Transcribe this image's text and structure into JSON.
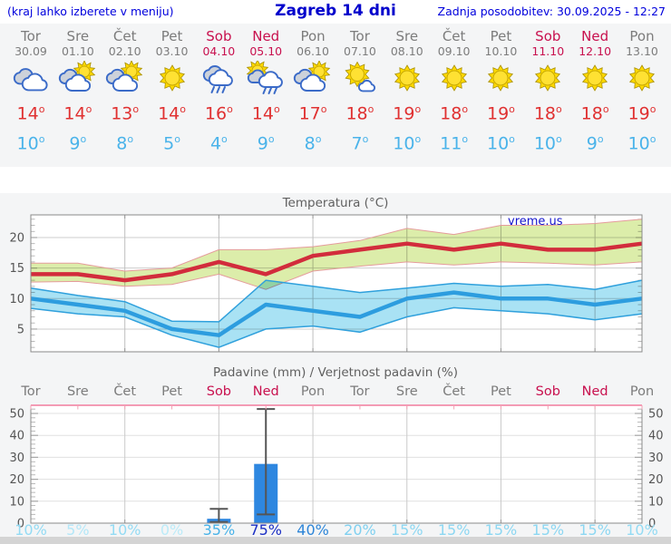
{
  "header": {
    "left_note": "(kraj lahko izberete v meniju)",
    "title": "Zagreb 14 dni",
    "updated": "Zadnja posodobitev: 30.09.2025 - 12:27"
  },
  "shared": {
    "deg": "o"
  },
  "colors": {
    "header_blue": "#0000dd",
    "day_gray": "#7c7c7c",
    "weekend_crimson": "#c8104e",
    "tmax_red": "#e03131",
    "tmin_blue": "#4ab3ea",
    "max_line": "#d22c3c",
    "max_band": "#dcedaa",
    "min_line": "#2d9ddf",
    "min_band": "#a9e2f4",
    "bar_blue": "#2e87e0",
    "panel_gray": "#f4f5f6"
  },
  "days": [
    {
      "name": "Tor",
      "date": "30.09",
      "weekend": false,
      "icon": "cloudy",
      "tmax": 14,
      "tmin": 10,
      "pop": "10%",
      "pop_color": "#93dbf4"
    },
    {
      "name": "Sre",
      "date": "01.10",
      "weekend": false,
      "icon": "partly-cloudy",
      "tmax": 14,
      "tmin": 9,
      "pop": "5%",
      "pop_color": "#b4e7f8"
    },
    {
      "name": "Čet",
      "date": "02.10",
      "weekend": false,
      "icon": "partly-cloudy",
      "tmax": 13,
      "tmin": 8,
      "pop": "10%",
      "pop_color": "#93dbf4"
    },
    {
      "name": "Pet",
      "date": "03.10",
      "weekend": false,
      "icon": "sunny",
      "tmax": 14,
      "tmin": 5,
      "pop": "0%",
      "pop_color": "#bcebf8"
    },
    {
      "name": "Sob",
      "date": "04.10",
      "weekend": true,
      "icon": "rain",
      "tmax": 16,
      "tmin": 4,
      "pop": "35%",
      "pop_color": "#47b2e8"
    },
    {
      "name": "Ned",
      "date": "05.10",
      "weekend": true,
      "icon": "sun-shower",
      "tmax": 14,
      "tmin": 9,
      "pop": "75%",
      "pop_color": "#1b2fc4"
    },
    {
      "name": "Pon",
      "date": "06.10",
      "weekend": false,
      "icon": "partly-cloudy",
      "tmax": 17,
      "tmin": 8,
      "pop": "40%",
      "pop_color": "#2d85d8"
    },
    {
      "name": "Tor",
      "date": "07.10",
      "weekend": false,
      "icon": "mostly-sunny",
      "tmax": 18,
      "tmin": 7,
      "pop": "20%",
      "pop_color": "#7fd0f0"
    },
    {
      "name": "Sre",
      "date": "08.10",
      "weekend": false,
      "icon": "sunny",
      "tmax": 19,
      "tmin": 10,
      "pop": "15%",
      "pop_color": "#8cd7f2"
    },
    {
      "name": "Čet",
      "date": "09.10",
      "weekend": false,
      "icon": "sunny",
      "tmax": 18,
      "tmin": 11,
      "pop": "15%",
      "pop_color": "#8cd7f2"
    },
    {
      "name": "Pet",
      "date": "10.10",
      "weekend": false,
      "icon": "sunny",
      "tmax": 19,
      "tmin": 10,
      "pop": "15%",
      "pop_color": "#8cd7f2"
    },
    {
      "name": "Sob",
      "date": "11.10",
      "weekend": true,
      "icon": "sunny",
      "tmax": 18,
      "tmin": 10,
      "pop": "15%",
      "pop_color": "#8cd7f2"
    },
    {
      "name": "Ned",
      "date": "12.10",
      "weekend": true,
      "icon": "sunny",
      "tmax": 18,
      "tmin": 9,
      "pop": "15%",
      "pop_color": "#8cd7f2"
    },
    {
      "name": "Pon",
      "date": "13.10",
      "weekend": false,
      "icon": "sunny",
      "tmax": 19,
      "tmin": 10,
      "pop": "10%",
      "pop_color": "#93dbf4"
    }
  ],
  "chart_data": [
    {
      "type": "line",
      "title": "Temperatura (°C)",
      "watermark": "vreme.us",
      "x_labels": [
        "Tor 30.09",
        "Sre 01.10",
        "Čet 02.10",
        "Pet 03.10",
        "Sob 04.10",
        "Ned 05.10",
        "Pon 06.10",
        "Tor 07.10",
        "Sre 08.10",
        "Čet 09.10",
        "Pet 10.10",
        "Sob 11.10",
        "Ned 12.10",
        "Pon 13.10"
      ],
      "ylim": [
        1.3,
        23.7
      ],
      "yticks": [
        5,
        10,
        15,
        20
      ],
      "grid": true,
      "legend_position": "none",
      "series": [
        {
          "name": "tmax",
          "color": "#d22c3c",
          "values": [
            14,
            14,
            13,
            14,
            16,
            14,
            17,
            18,
            19,
            18,
            19,
            18,
            18,
            19
          ]
        },
        {
          "name": "tmax_band_upper",
          "color": "#dcedaa",
          "values": [
            15.8,
            15.8,
            14.5,
            15,
            18,
            18,
            18.5,
            19.5,
            21.5,
            20.5,
            22,
            22,
            22.3,
            23
          ]
        },
        {
          "name": "tmax_band_lower",
          "color": "#dcedaa",
          "values": [
            12.7,
            12.8,
            12,
            12.3,
            14,
            11.5,
            14.5,
            15.3,
            16,
            15.5,
            16,
            15.8,
            15.5,
            16
          ]
        },
        {
          "name": "tmin",
          "color": "#2d9ddf",
          "values": [
            10,
            9,
            8,
            5,
            4,
            9,
            8,
            7,
            10,
            11,
            10,
            10,
            9,
            10
          ]
        },
        {
          "name": "tmin_band_upper",
          "color": "#a9e2f4",
          "values": [
            11.7,
            10.5,
            9.5,
            6.3,
            6.2,
            13,
            12,
            11,
            11.7,
            12.5,
            12,
            12.3,
            11.5,
            13
          ]
        },
        {
          "name": "tmin_band_lower",
          "color": "#a9e2f4",
          "values": [
            8.4,
            7.5,
            7,
            4,
            2,
            5,
            5.5,
            4.5,
            7,
            8.5,
            8,
            7.5,
            6.5,
            7.5
          ]
        }
      ]
    },
    {
      "type": "bar",
      "title": "Padavine (mm) / Verjetnost padavin (%)",
      "categories": [
        "Tor",
        "Sre",
        "Čet",
        "Pet",
        "Sob",
        "Ned",
        "Pon",
        "Tor",
        "Sre",
        "Čet",
        "Pet",
        "Sob",
        "Ned",
        "Pon"
      ],
      "values": [
        0,
        0,
        0,
        0,
        2,
        27,
        0,
        0,
        0,
        0,
        0,
        0,
        0,
        0
      ],
      "whisker_low": [
        null,
        null,
        null,
        null,
        0.5,
        4,
        null,
        null,
        null,
        null,
        null,
        null,
        null,
        null
      ],
      "whisker_high": [
        null,
        null,
        null,
        null,
        6.5,
        52,
        null,
        null,
        null,
        null,
        null,
        null,
        null,
        null
      ],
      "percent_labels": [
        "10%",
        "5%",
        "10%",
        "0%",
        "35%",
        "75%",
        "40%",
        "20%",
        "15%",
        "15%",
        "15%",
        "15%",
        "15%",
        "10%"
      ],
      "ylim": [
        0,
        53.5
      ],
      "yticks": [
        0,
        10,
        20,
        30,
        40,
        50
      ],
      "grid": true,
      "bar_color": "#2e87e0"
    }
  ]
}
